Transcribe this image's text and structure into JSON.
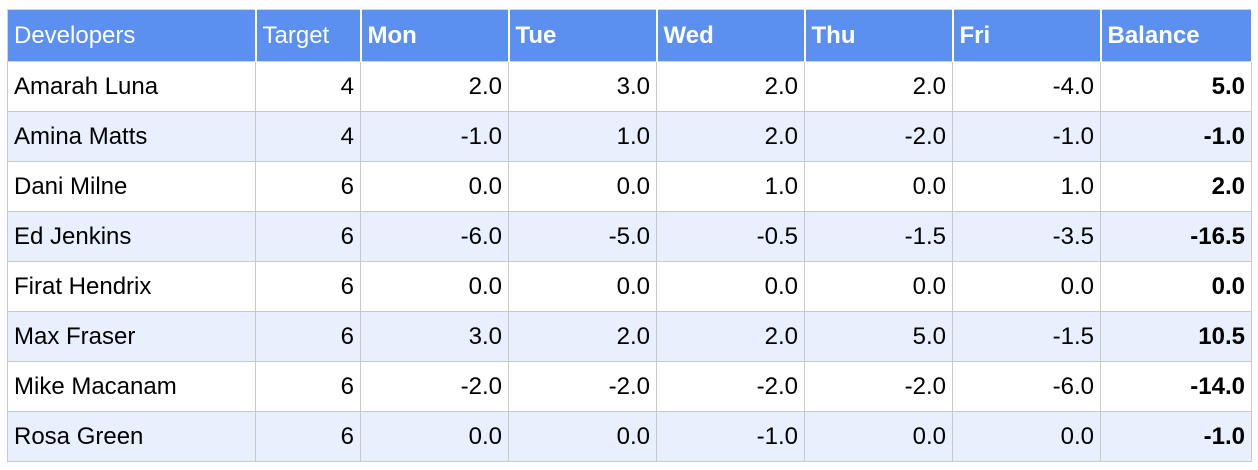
{
  "headers": {
    "developers": "Developers",
    "target": "Target",
    "mon": "Mon",
    "tue": "Tue",
    "wed": "Wed",
    "thu": "Thu",
    "fri": "Fri",
    "balance": "Balance"
  },
  "colors": {
    "header_bg": "#5b8ff0",
    "header_text": "#ffffff",
    "band_bg": "#e8effd",
    "grid": "#c9c9c9"
  },
  "rows": [
    {
      "name": "Amarah Luna",
      "target": "4",
      "mon": "2.0",
      "tue": "3.0",
      "wed": "2.0",
      "thu": "2.0",
      "fri": "-4.0",
      "balance": "5.0"
    },
    {
      "name": "Amina Matts",
      "target": "4",
      "mon": "-1.0",
      "tue": "1.0",
      "wed": "2.0",
      "thu": "-2.0",
      "fri": "-1.0",
      "balance": "-1.0"
    },
    {
      "name": "Dani Milne",
      "target": "6",
      "mon": "0.0",
      "tue": "0.0",
      "wed": "1.0",
      "thu": "0.0",
      "fri": "1.0",
      "balance": "2.0"
    },
    {
      "name": "Ed Jenkins",
      "target": "6",
      "mon": "-6.0",
      "tue": "-5.0",
      "wed": "-0.5",
      "thu": "-1.5",
      "fri": "-3.5",
      "balance": "-16.5"
    },
    {
      "name": "Firat Hendrix",
      "target": "6",
      "mon": "0.0",
      "tue": "0.0",
      "wed": "0.0",
      "thu": "0.0",
      "fri": "0.0",
      "balance": "0.0"
    },
    {
      "name": "Max Fraser",
      "target": "6",
      "mon": "3.0",
      "tue": "2.0",
      "wed": "2.0",
      "thu": "5.0",
      "fri": "-1.5",
      "balance": "10.5"
    },
    {
      "name": "Mike Macanam",
      "target": "6",
      "mon": "-2.0",
      "tue": "-2.0",
      "wed": "-2.0",
      "thu": "-2.0",
      "fri": "-6.0",
      "balance": "-14.0"
    },
    {
      "name": "Rosa Green",
      "target": "6",
      "mon": "0.0",
      "tue": "0.0",
      "wed": "-1.0",
      "thu": "0.0",
      "fri": "0.0",
      "balance": "-1.0"
    }
  ]
}
